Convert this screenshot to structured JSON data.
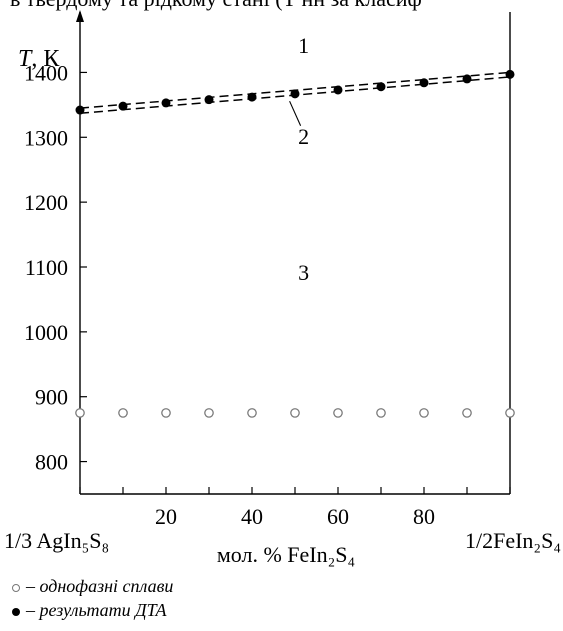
{
  "top_caption": "в твердому та рідкому стані (Т нн за класиф",
  "chart_data": {
    "type": "scatter",
    "ylabel_italic": "T",
    "ylabel_rest": ", К",
    "xlabel": "мол. % FeIn₂S₄",
    "x_left_label": "1/3 AgIn₅S₈",
    "x_right_label": "1/2FeIn₂S₄",
    "xlim": [
      0,
      100
    ],
    "ylim": [
      750,
      1450
    ],
    "x_ticks": [
      20,
      40,
      60,
      80
    ],
    "y_ticks": [
      800,
      900,
      1000,
      1100,
      1200,
      1300,
      1400
    ],
    "region_labels": [
      {
        "text": "1",
        "x": 52,
        "y": 1430
      },
      {
        "text": "2",
        "x": 52,
        "y": 1290
      },
      {
        "text": "3",
        "x": 52,
        "y": 1080
      }
    ],
    "series": [
      {
        "name": "результати ДТА",
        "marker": "filled",
        "x": [
          0,
          10,
          20,
          30,
          40,
          50,
          60,
          70,
          80,
          90,
          100
        ],
        "y": [
          1342,
          1348,
          1353,
          1358,
          1362,
          1367,
          1373,
          1378,
          1384,
          1390,
          1397
        ]
      },
      {
        "name": "однофазні сплави",
        "marker": "open",
        "x": [
          0,
          10,
          20,
          30,
          40,
          50,
          60,
          70,
          80,
          90,
          100
        ],
        "y": [
          875,
          875,
          875,
          875,
          875,
          875,
          875,
          875,
          875,
          875,
          875
        ]
      }
    ],
    "boundary_lines": [
      {
        "x": [
          0,
          100
        ],
        "y": [
          1345,
          1400
        ]
      },
      {
        "x": [
          0,
          100
        ],
        "y": [
          1337,
          1393
        ]
      }
    ],
    "legend": [
      {
        "marker": "open",
        "label": "– однофазні сплави"
      },
      {
        "marker": "filled",
        "label": "– результати ДТА"
      }
    ],
    "colors": {
      "filled": "#000000",
      "open": "#7a7a7a",
      "axis": "#000000"
    }
  }
}
